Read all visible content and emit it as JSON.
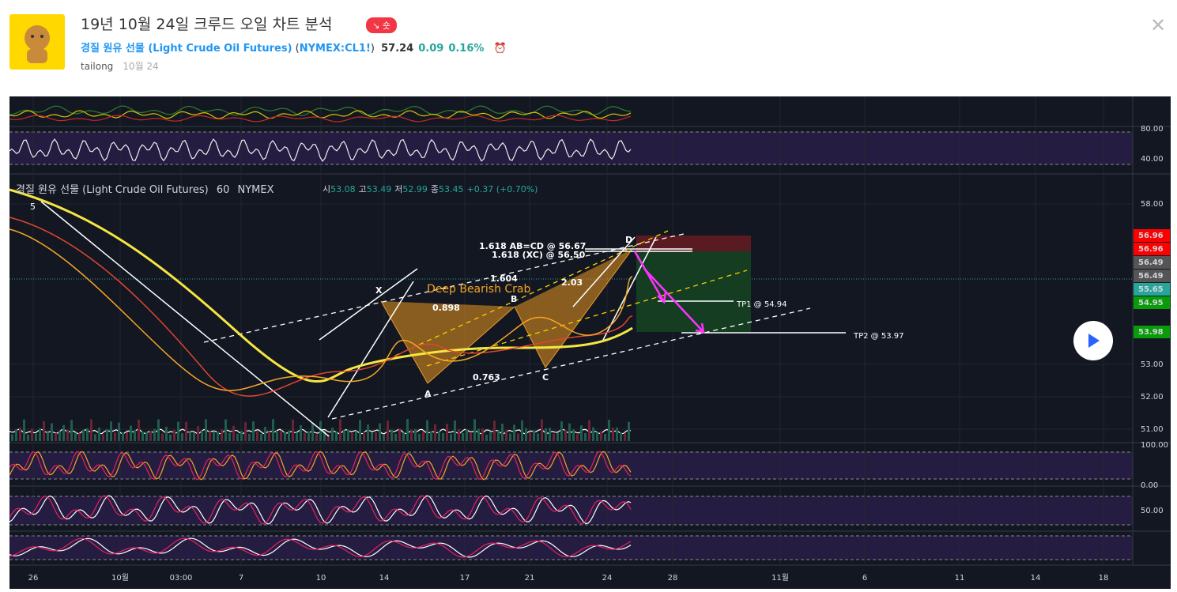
{
  "header": {
    "title": "19년 10월 24일 크루드 오일 차트 분석",
    "badge": "숏",
    "symbol": "경질 원유 선물 (Light Crude Oil Futures)",
    "ticker": "NYMEX:CL1!",
    "price": "57.24",
    "change": "0.09",
    "change_pct": "0.16%",
    "author": "tailong",
    "date": "10월 24"
  },
  "chart": {
    "legend": {
      "name": "경질 원유 선물 (Light Crude Oil Futures)",
      "interval": "60",
      "exchange": "NYMEX",
      "open_label": "시",
      "open": "53.08",
      "high_label": "고",
      "high": "53.49",
      "low_label": "저",
      "low": "52.99",
      "close_label": "종",
      "close": "53.45",
      "change": "+0.37 (+0.70%)"
    },
    "price_axis": [
      "58.00",
      "53.00",
      "52.00",
      "51.00"
    ],
    "price_badges": [
      "56.96",
      "56.96",
      "56.49",
      "56.49",
      "55.65",
      "54.95",
      "53.98"
    ],
    "indicator_axis": [
      "80.00",
      "40.00",
      "100.00",
      "0.00",
      "50.00"
    ],
    "time_axis": [
      "26",
      "10월",
      "03:00",
      "7",
      "10",
      "14",
      "17",
      "21",
      "24",
      "28",
      "11월",
      "6",
      "11",
      "14",
      "18"
    ],
    "annotations": {
      "abcd": "1.618 AB=CD @ 56.67",
      "xc": "1.618 (XC) @ 56.50",
      "pattern": "Deep Bearish Crab",
      "r1604": "1.604",
      "r203": "2.03",
      "r0898": "0.898",
      "r0763": "0.763",
      "X": "X",
      "A": "A",
      "B": "B",
      "C": "C",
      "D": "D",
      "tp1": "TP1 @ 54.94",
      "tp2": "TP2 @ 53.97",
      "count": "5"
    }
  }
}
